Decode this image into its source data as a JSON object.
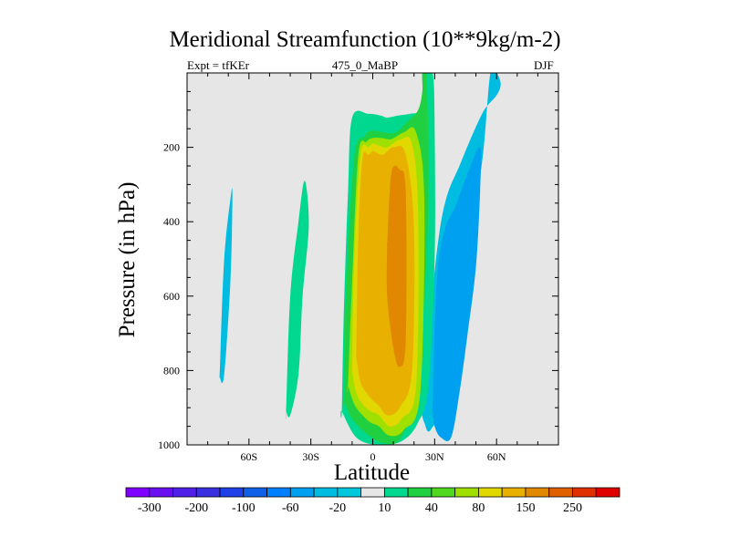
{
  "chart_data": {
    "type": "heatmap",
    "title": "Meridional Streamfunction (10**9kg/m-2)",
    "left_string": "Expt = tfKEr",
    "center_string": "475_0_MaBP",
    "right_string": "DJF",
    "xlabel": "Latitude",
    "ylabel": "Pressure (in hPa)",
    "x_ticks": [
      {
        "value": -60,
        "label": "60S"
      },
      {
        "value": -30,
        "label": "30S"
      },
      {
        "value": 0,
        "label": "0"
      },
      {
        "value": 30,
        "label": "30N"
      },
      {
        "value": 60,
        "label": "60N"
      }
    ],
    "y_ticks": [
      200,
      400,
      600,
      800,
      1000
    ],
    "xlim": [
      -90,
      90
    ],
    "ylim": [
      1000,
      0
    ],
    "background_color": "#e6e6e6",
    "colorbar": {
      "labels": [
        "-300",
        "-200",
        "-100",
        "-60",
        "-20",
        "10",
        "40",
        "80",
        "150",
        "250"
      ],
      "colors": [
        "#8000ff",
        "#6a10f0",
        "#5020e8",
        "#3a30e0",
        "#2040e8",
        "#1060e8",
        "#0080ff",
        "#00a0f0",
        "#00bce0",
        "#00c8dc",
        "#e6e6e6",
        "#00d890",
        "#20d040",
        "#50d820",
        "#a0e000",
        "#e0d800",
        "#e8b000",
        "#e08800",
        "#e06000",
        "#e03000",
        "#e00000"
      ]
    },
    "contours": [
      {
        "level": "-20",
        "color": "#00bce0",
        "lat": [
          -74,
          -72,
          -69,
          -68,
          -69,
          -72,
          -74
        ],
        "p": [
          780,
          500,
          340,
          330,
          560,
          810,
          820
        ]
      },
      {
        "level": "-20",
        "color": "#00bce0",
        "lat": [
          23,
          28,
          32,
          36,
          42,
          48,
          54,
          60,
          62,
          60,
          57,
          53,
          47,
          42,
          36,
          28,
          25,
          23
        ],
        "p": [
          900,
          640,
          440,
          330,
          250,
          170,
          100,
          60,
          30,
          0,
          0,
          240,
          420,
          620,
          860,
          960,
          940,
          900
        ]
      },
      {
        "level": "-60",
        "color": "#00a0f0",
        "lat": [
          29,
          31,
          35,
          40,
          46,
          52,
          52,
          50,
          46,
          42,
          38,
          33,
          30,
          29
        ],
        "p": [
          900,
          560,
          420,
          360,
          270,
          200,
          320,
          520,
          700,
          860,
          980,
          980,
          950,
          900
        ]
      },
      {
        "level": "10",
        "color": "#00d890",
        "lat": [
          -42,
          -40,
          -36,
          -33,
          -31,
          -34,
          -36,
          -40,
          -42
        ],
        "p": [
          910,
          600,
          400,
          290,
          410,
          600,
          810,
          920,
          910
        ]
      },
      {
        "level": "10",
        "color": "#00d890",
        "lat": [
          -15,
          -14,
          -12,
          -10,
          -2,
          4,
          7,
          12,
          18,
          24,
          25,
          25,
          29,
          30,
          30,
          27,
          22,
          14,
          2,
          -8,
          -15
        ],
        "p": [
          910,
          640,
          320,
          120,
          110,
          115,
          120,
          115,
          110,
          100,
          50,
          0,
          0,
          140,
          500,
          840,
          940,
          990,
          1000,
          980,
          910
        ]
      },
      {
        "level": "40",
        "color": "#20d040",
        "lat": [
          -14,
          -13,
          -9,
          -4,
          0,
          5,
          11,
          17,
          22,
          24,
          24,
          26,
          27,
          25,
          20,
          13,
          5,
          -3,
          -10,
          -14
        ],
        "p": [
          880,
          600,
          230,
          170,
          155,
          160,
          160,
          130,
          100,
          50,
          0,
          0,
          300,
          600,
          880,
          985,
          995,
          970,
          930,
          880
        ]
      },
      {
        "level": "80",
        "color": "#a0e000",
        "lat": [
          -12,
          -10,
          -7,
          -3,
          0,
          4,
          9,
          15,
          21,
          25,
          23,
          15,
          8,
          3,
          -1,
          -5,
          -9,
          -12
        ],
        "p": [
          840,
          560,
          220,
          185,
          175,
          175,
          178,
          160,
          160,
          340,
          860,
          960,
          975,
          950,
          940,
          920,
          890,
          840
        ]
      },
      {
        "level": "150",
        "color": "#e0d800",
        "lat": [
          -10,
          -9,
          -6,
          -2,
          0,
          3,
          7,
          13,
          19,
          22,
          21,
          14,
          8,
          3,
          -1,
          -5,
          -8,
          -10
        ],
        "p": [
          800,
          500,
          220,
          200,
          190,
          195,
          200,
          180,
          190,
          380,
          840,
          930,
          950,
          920,
          910,
          890,
          860,
          800
        ]
      },
      {
        "level": "250",
        "color": "#e8b000",
        "lat": [
          -8,
          -7,
          -5,
          -2,
          0,
          2,
          5,
          10,
          16,
          20,
          19,
          13,
          7,
          3,
          0,
          -3,
          -6,
          -8
        ],
        "p": [
          760,
          440,
          230,
          220,
          210,
          215,
          220,
          200,
          220,
          420,
          800,
          900,
          920,
          895,
          880,
          860,
          830,
          760
        ]
      },
      {
        "level": "350",
        "color": "#e08800",
        "lat": [
          7,
          9,
          13,
          16,
          16,
          13,
          10,
          7,
          7
        ],
        "p": [
          460,
          270,
          260,
          320,
          720,
          790,
          740,
          600,
          460
        ]
      }
    ]
  }
}
